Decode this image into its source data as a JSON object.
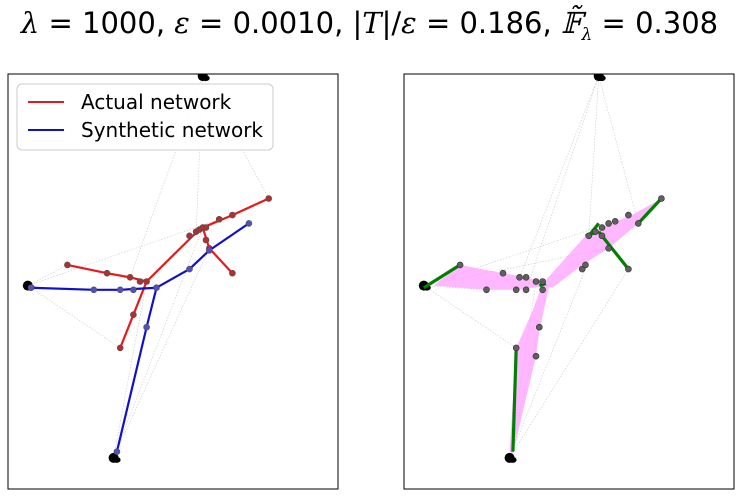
{
  "figure": {
    "title_lambda": "1000",
    "title_epsilon": "0.0010",
    "title_ratio": "0.186",
    "title_F": "0.308"
  },
  "chart_data": [
    {
      "type": "network",
      "panel": "left",
      "legend": {
        "placement": "top-left",
        "entries": [
          {
            "label": "Actual network",
            "color": "#e41a1c"
          },
          {
            "label": "Synthetic network",
            "color": "#1010cc"
          }
        ]
      },
      "xlim": [
        0,
        1
      ],
      "ylim": [
        0,
        1
      ],
      "terminals": [
        [
          0.06,
          0.49
        ],
        [
          0.32,
          0.075
        ],
        [
          0.59,
          0.995
        ]
      ],
      "actual_network": {
        "color": "#e41a1c",
        "edges": [
          [
            [
              0.18,
              0.54
            ],
            [
              0.3,
              0.52
            ]
          ],
          [
            [
              0.3,
              0.52
            ],
            [
              0.37,
              0.51
            ]
          ],
          [
            [
              0.37,
              0.51
            ],
            [
              0.42,
              0.5
            ]
          ],
          [
            [
              0.42,
              0.5
            ],
            [
              0.38,
              0.42
            ]
          ],
          [
            [
              0.38,
              0.42
            ],
            [
              0.34,
              0.34
            ]
          ],
          [
            [
              0.42,
              0.5
            ],
            [
              0.56,
              0.61
            ]
          ],
          [
            [
              0.56,
              0.61
            ],
            [
              0.59,
              0.63
            ]
          ],
          [
            [
              0.59,
              0.63
            ],
            [
              0.68,
              0.66
            ]
          ],
          [
            [
              0.68,
              0.66
            ],
            [
              0.79,
              0.7
            ]
          ],
          [
            [
              0.59,
              0.63
            ],
            [
              0.61,
              0.58
            ]
          ],
          [
            [
              0.61,
              0.58
            ],
            [
              0.68,
              0.52
            ]
          ]
        ],
        "nodes": [
          [
            0.18,
            0.54
          ],
          [
            0.3,
            0.52
          ],
          [
            0.37,
            0.51
          ],
          [
            0.4,
            0.5
          ],
          [
            0.42,
            0.5
          ],
          [
            0.38,
            0.42
          ],
          [
            0.34,
            0.34
          ],
          [
            0.55,
            0.61
          ],
          [
            0.57,
            0.62
          ],
          [
            0.58,
            0.625
          ],
          [
            0.59,
            0.63
          ],
          [
            0.6,
            0.63
          ],
          [
            0.64,
            0.65
          ],
          [
            0.68,
            0.66
          ],
          [
            0.79,
            0.7
          ],
          [
            0.6,
            0.6
          ],
          [
            0.61,
            0.58
          ],
          [
            0.68,
            0.52
          ]
        ]
      },
      "synthetic_network": {
        "color": "#1010cc",
        "edges": [
          [
            [
              0.07,
              0.485
            ],
            [
              0.26,
              0.48
            ]
          ],
          [
            [
              0.26,
              0.48
            ],
            [
              0.34,
              0.48
            ]
          ],
          [
            [
              0.34,
              0.48
            ],
            [
              0.45,
              0.485
            ]
          ],
          [
            [
              0.45,
              0.485
            ],
            [
              0.42,
              0.39
            ]
          ],
          [
            [
              0.42,
              0.39
            ],
            [
              0.33,
              0.09
            ]
          ],
          [
            [
              0.45,
              0.485
            ],
            [
              0.55,
              0.53
            ]
          ],
          [
            [
              0.55,
              0.53
            ],
            [
              0.61,
              0.575
            ]
          ],
          [
            [
              0.61,
              0.575
            ],
            [
              0.73,
              0.64
            ]
          ]
        ],
        "nodes": [
          [
            0.07,
            0.485
          ],
          [
            0.26,
            0.48
          ],
          [
            0.34,
            0.48
          ],
          [
            0.38,
            0.48
          ],
          [
            0.45,
            0.485
          ],
          [
            0.42,
            0.39
          ],
          [
            0.33,
            0.09
          ],
          [
            0.55,
            0.53
          ],
          [
            0.61,
            0.575
          ],
          [
            0.73,
            0.64
          ]
        ]
      }
    },
    {
      "type": "network",
      "panel": "right",
      "xlim": [
        0,
        1
      ],
      "ylim": [
        0,
        1
      ],
      "terminals": [
        [
          0.06,
          0.49
        ],
        [
          0.32,
          0.075
        ],
        [
          0.59,
          0.995
        ]
      ],
      "overlay_color": "#ff99ff",
      "overlay_regions": [
        [
          [
            0.09,
            0.49
          ],
          [
            0.17,
            0.54
          ],
          [
            0.3,
            0.52
          ],
          [
            0.37,
            0.51
          ],
          [
            0.41,
            0.5
          ],
          [
            0.43,
            0.49
          ],
          [
            0.35,
            0.48
          ],
          [
            0.25,
            0.48
          ]
        ],
        [
          [
            0.32,
            0.09
          ],
          [
            0.34,
            0.34
          ],
          [
            0.39,
            0.43
          ],
          [
            0.42,
            0.495
          ],
          [
            0.44,
            0.49
          ],
          [
            0.41,
            0.38
          ],
          [
            0.4,
            0.32
          ],
          [
            0.33,
            0.085
          ]
        ],
        [
          [
            0.42,
            0.495
          ],
          [
            0.55,
            0.61
          ],
          [
            0.6,
            0.63
          ],
          [
            0.69,
            0.66
          ],
          [
            0.78,
            0.7
          ],
          [
            0.71,
            0.64
          ],
          [
            0.62,
            0.58
          ],
          [
            0.54,
            0.54
          ],
          [
            0.45,
            0.485
          ]
        ]
      ],
      "green_color": "#008000",
      "green_edges": [
        [
          [
            0.06,
            0.485
          ],
          [
            0.17,
            0.54
          ]
        ],
        [
          [
            0.33,
            0.09
          ],
          [
            0.34,
            0.34
          ]
        ],
        [
          [
            0.41,
            0.49
          ],
          [
            0.43,
            0.495
          ]
        ],
        [
          [
            0.55,
            0.61
          ],
          [
            0.59,
            0.62
          ]
        ],
        [
          [
            0.59,
            0.62
          ],
          [
            0.68,
            0.53
          ]
        ],
        [
          [
            0.71,
            0.64
          ],
          [
            0.78,
            0.7
          ]
        ],
        [
          [
            0.56,
            0.61
          ],
          [
            0.59,
            0.64
          ]
        ]
      ],
      "nodes": [
        [
          0.17,
          0.54
        ],
        [
          0.3,
          0.52
        ],
        [
          0.35,
          0.51
        ],
        [
          0.37,
          0.51
        ],
        [
          0.4,
          0.5
        ],
        [
          0.42,
          0.5
        ],
        [
          0.25,
          0.48
        ],
        [
          0.34,
          0.48
        ],
        [
          0.37,
          0.48
        ],
        [
          0.42,
          0.48
        ],
        [
          0.41,
          0.39
        ],
        [
          0.4,
          0.32
        ],
        [
          0.34,
          0.34
        ],
        [
          0.54,
          0.53
        ],
        [
          0.56,
          0.61
        ],
        [
          0.58,
          0.62
        ],
        [
          0.6,
          0.63
        ],
        [
          0.62,
          0.64
        ],
        [
          0.64,
          0.645
        ],
        [
          0.68,
          0.66
        ],
        [
          0.71,
          0.64
        ],
        [
          0.78,
          0.7
        ],
        [
          0.68,
          0.53
        ],
        [
          0.55,
          0.54
        ],
        [
          0.62,
          0.58
        ],
        [
          0.6,
          0.61
        ]
      ]
    }
  ]
}
